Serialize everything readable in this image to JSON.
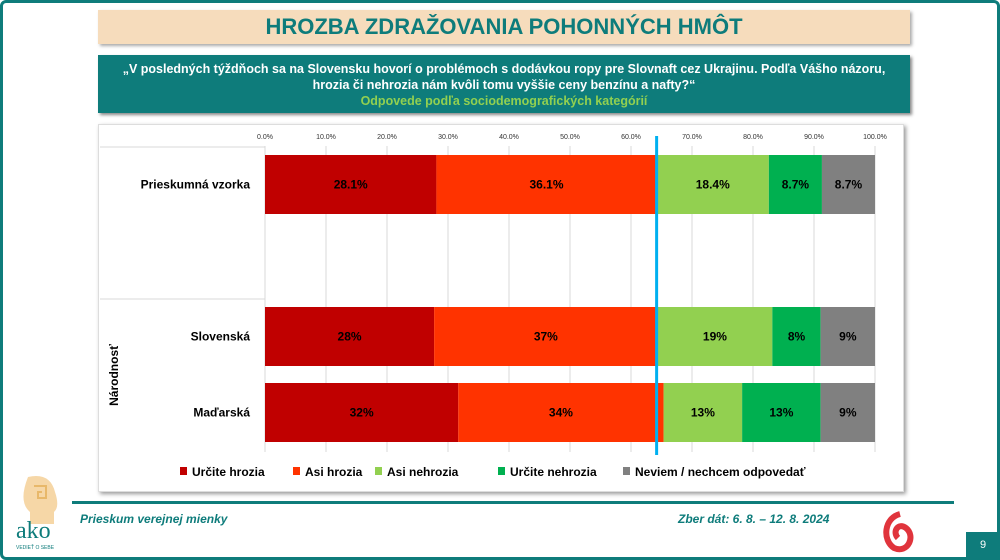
{
  "header": {
    "title": "HROZBA ZDRAŽOVANIA POHONNÝCH HMÔT"
  },
  "question": {
    "line1": "„V posledných týždňoch sa na Slovensku hovorí o problémoch s dodávkou ropy pre Slovnaft cez Ukrajinu. Podľa Vášho názoru,",
    "line2": "hrozia či nehrozia nám kvôli tomu vyššie ceny benzínu a nafty?“",
    "subtitle": "Odpovede podľa sociodemografických kategórií"
  },
  "chart_data": {
    "type": "bar",
    "orientation": "horizontal",
    "stacked": true,
    "xlim": [
      0,
      100
    ],
    "ticks": [
      "0.0%",
      "10.0%",
      "20.0%",
      "30.0%",
      "40.0%",
      "50.0%",
      "60.0%",
      "70.0%",
      "80.0%",
      "90.0%",
      "100.0%"
    ],
    "group_label": "Národnosť",
    "categories": [
      "Prieskumná vzorka",
      "Slovenská",
      "Maďarská"
    ],
    "series": [
      {
        "name": "Určite hrozia",
        "color": "#c00000",
        "values": [
          28.1,
          28,
          32
        ],
        "labels": [
          "28.1%",
          "28%",
          "32%"
        ]
      },
      {
        "name": "Asi hrozia",
        "color": "#ff3300",
        "values": [
          36.1,
          37,
          34
        ],
        "labels": [
          "36.1%",
          "37%",
          "34%"
        ]
      },
      {
        "name": "Asi nehrozia",
        "color": "#92d050",
        "values": [
          18.4,
          19,
          13
        ],
        "labels": [
          "18.4%",
          "19%",
          "13%"
        ]
      },
      {
        "name": "Určite nehrozia",
        "color": "#00b050",
        "values": [
          8.7,
          8,
          13
        ],
        "labels": [
          "8.7%",
          "8%",
          "13%"
        ]
      },
      {
        "name": "Neviem / nechcem odpovedať",
        "color": "#808080",
        "values": [
          8.7,
          9,
          9
        ],
        "labels": [
          "8.7%",
          "9%",
          "9%"
        ]
      }
    ],
    "reference_line": {
      "value": 64.2,
      "color": "#00b0f0"
    },
    "legend": "bottom"
  },
  "footer": {
    "left": "Prieskum verejnej mienky",
    "right": "Zber dát: 6. 8. – 12. 8. 2024",
    "page": "9",
    "logo_text": "ako",
    "logo_tagline": "VEDIEŤ O SEBE"
  }
}
